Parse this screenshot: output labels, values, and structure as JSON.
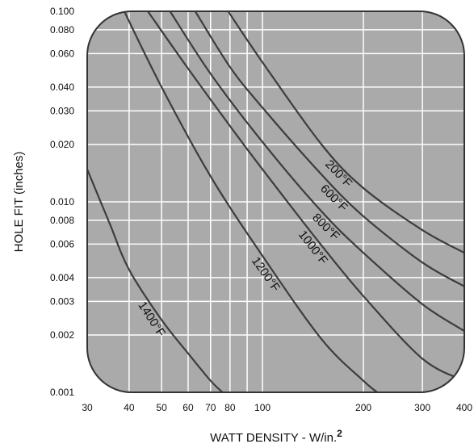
{
  "chart_data": {
    "type": "line",
    "title": "",
    "xlabel": "WATT DENSITY - W/in.",
    "xlabel_superscript": "2",
    "ylabel": "HOLE FIT (inches)",
    "x_scale": "log",
    "y_scale": "log",
    "xlim": [
      30,
      400
    ],
    "ylim": [
      0.001,
      0.1
    ],
    "x_ticks": [
      {
        "value": 30,
        "label": "30"
      },
      {
        "value": 40,
        "label": "40"
      },
      {
        "value": 50,
        "label": "50"
      },
      {
        "value": 60,
        "label": "60"
      },
      {
        "value": 70,
        "label": "70"
      },
      {
        "value": 80,
        "label": "80"
      },
      {
        "value": 90,
        "label": ""
      },
      {
        "value": 100,
        "label": "100"
      },
      {
        "value": 200,
        "label": "200"
      },
      {
        "value": 300,
        "label": "300"
      },
      {
        "value": 400,
        "label": "400"
      }
    ],
    "y_ticks": [
      {
        "value": 0.001,
        "label": "0.001"
      },
      {
        "value": 0.002,
        "label": "0.002"
      },
      {
        "value": 0.003,
        "label": "0.003"
      },
      {
        "value": 0.004,
        "label": "0.004"
      },
      {
        "value": 0.006,
        "label": "0.006"
      },
      {
        "value": 0.008,
        "label": "0.008"
      },
      {
        "value": 0.01,
        "label": "0.010"
      },
      {
        "value": 0.02,
        "label": "0.020"
      },
      {
        "value": 0.03,
        "label": "0.030"
      },
      {
        "value": 0.04,
        "label": "0.040"
      },
      {
        "value": 0.06,
        "label": "0.060"
      },
      {
        "value": 0.08,
        "label": "0.080"
      },
      {
        "value": 0.1,
        "label": "0.100"
      }
    ],
    "grid": true,
    "colors": {
      "plot_fill": "#aaaaaa",
      "grid": "#ffffff",
      "curve": "#3d3d3d",
      "frame": "#333333"
    },
    "series": [
      {
        "name": "200°F",
        "label_at": 0.015,
        "points": [
          [
            79,
            0.1
          ],
          [
            100,
            0.054
          ],
          [
            150,
            0.02
          ],
          [
            200,
            0.0118
          ],
          [
            300,
            0.0071
          ],
          [
            400,
            0.0054
          ]
        ]
      },
      {
        "name": "600°F",
        "label_at": 0.0112,
        "points": [
          [
            63,
            0.1
          ],
          [
            80,
            0.051
          ],
          [
            100,
            0.0312
          ],
          [
            150,
            0.0139
          ],
          [
            200,
            0.0084
          ],
          [
            300,
            0.0048
          ],
          [
            400,
            0.0036
          ]
        ]
      },
      {
        "name": "800°F",
        "label_at": 0.0079,
        "points": [
          [
            53,
            0.1
          ],
          [
            70,
            0.047
          ],
          [
            100,
            0.0206
          ],
          [
            150,
            0.0089
          ],
          [
            200,
            0.0054
          ],
          [
            300,
            0.0029
          ],
          [
            400,
            0.0021
          ]
        ]
      },
      {
        "name": "1000°F",
        "label_at": 0.0061,
        "points": [
          [
            45.5,
            0.1
          ],
          [
            60,
            0.05
          ],
          [
            80,
            0.025
          ],
          [
            100,
            0.0148
          ],
          [
            150,
            0.0059
          ],
          [
            200,
            0.0032
          ],
          [
            300,
            0.0015
          ],
          [
            400,
            0.00115
          ]
        ]
      },
      {
        "name": "1200°F",
        "label_at": 0.0044,
        "points": [
          [
            38.7,
            0.1
          ],
          [
            50,
            0.04
          ],
          [
            70,
            0.0136
          ],
          [
            100,
            0.0052
          ],
          [
            150,
            0.0019
          ],
          [
            200,
            0.00115
          ],
          [
            220,
            0.001
          ]
        ]
      },
      {
        "name": "1400°F",
        "label_at": 0.00255,
        "points": [
          [
            30,
            0.0148
          ],
          [
            35,
            0.0077
          ],
          [
            40,
            0.0044
          ],
          [
            50,
            0.0024
          ],
          [
            60,
            0.0016
          ],
          [
            70,
            0.00115
          ],
          [
            76,
            0.001
          ]
        ]
      }
    ]
  }
}
